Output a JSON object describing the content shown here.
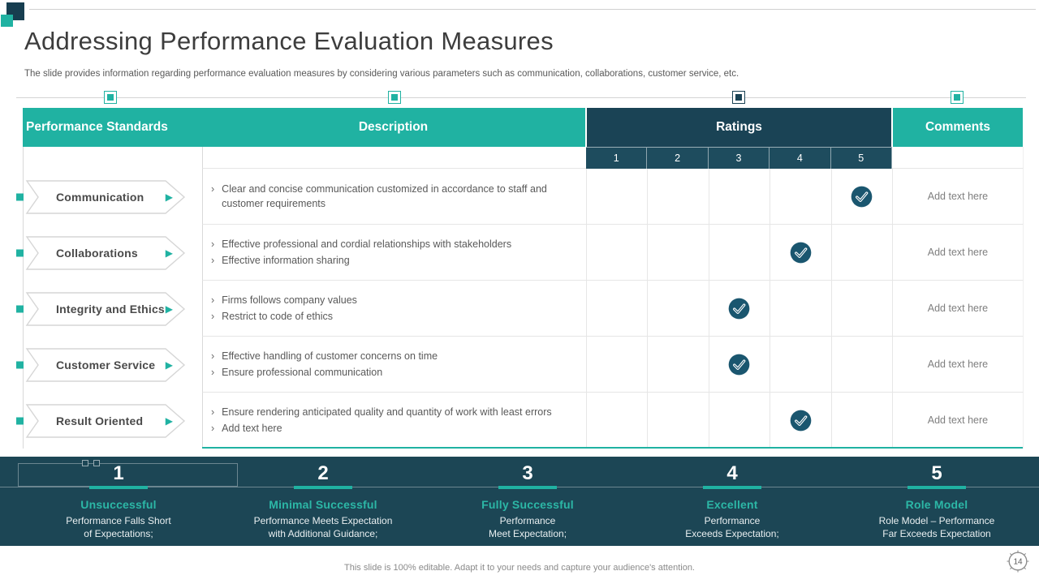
{
  "slide": {
    "title": "Addressing Performance Evaluation Measures",
    "subtitle": "The slide provides information regarding performance evaluation measures by considering various parameters such as communication, collaborations, customer service, etc.",
    "footer": "This slide is 100% editable. Adapt it to your needs and capture your audience's attention.",
    "page_number": "14"
  },
  "colors": {
    "teal": "#20B2A2",
    "navy_header": "#1A4355",
    "navy_rating_cell": "#1E4C5E",
    "navy_band": "#1C4655",
    "check_circle": "#1A566F"
  },
  "icons": {
    "arrow_right": "▶",
    "chevron_bullet": "›",
    "check": "✓"
  },
  "table": {
    "headers": {
      "standards": "Performance Standards",
      "description": "Description",
      "ratings": "Ratings",
      "comments": "Comments"
    },
    "rating_scale": [
      "1",
      "2",
      "3",
      "4",
      "5"
    ],
    "rows": [
      {
        "standard": "Communication",
        "description": [
          "Clear and concise communication customized in accordance to staff and customer requirements"
        ],
        "rating": 5,
        "comment": "Add text here"
      },
      {
        "standard": "Collaborations",
        "description": [
          "Effective professional and cordial relationships with stakeholders",
          "Effective information sharing"
        ],
        "rating": 4,
        "comment": "Add text here"
      },
      {
        "standard": "Integrity and Ethics",
        "description": [
          "Firms follows company values",
          "Restrict to code of ethics"
        ],
        "rating": 3,
        "comment": "Add text here"
      },
      {
        "standard": "Customer Service",
        "description": [
          "Effective handling of customer concerns on time",
          "Ensure professional communication"
        ],
        "rating": 3,
        "comment": "Add text here"
      },
      {
        "standard": "Result Oriented",
        "description": [
          "Ensure rendering anticipated quality and quantity of work with least errors",
          "Add text here"
        ],
        "rating": 4,
        "comment": "Add text here"
      }
    ]
  },
  "legend": {
    "items": [
      {
        "number": "1",
        "title": "Unsuccessful",
        "lines": [
          "Performance Falls Short",
          "of Expectations;"
        ]
      },
      {
        "number": "2",
        "title": "Minimal Successful",
        "lines": [
          "Performance Meets Expectation",
          "with Additional Guidance;"
        ]
      },
      {
        "number": "3",
        "title": "Fully Successful",
        "lines": [
          "Performance",
          "Meet Expectation;"
        ]
      },
      {
        "number": "4",
        "title": "Excellent",
        "lines": [
          "Performance",
          "Exceeds Expectation;"
        ]
      },
      {
        "number": "5",
        "title": "Role Model",
        "lines": [
          "Role Model – Performance",
          "Far Exceeds Expectation"
        ]
      }
    ]
  }
}
